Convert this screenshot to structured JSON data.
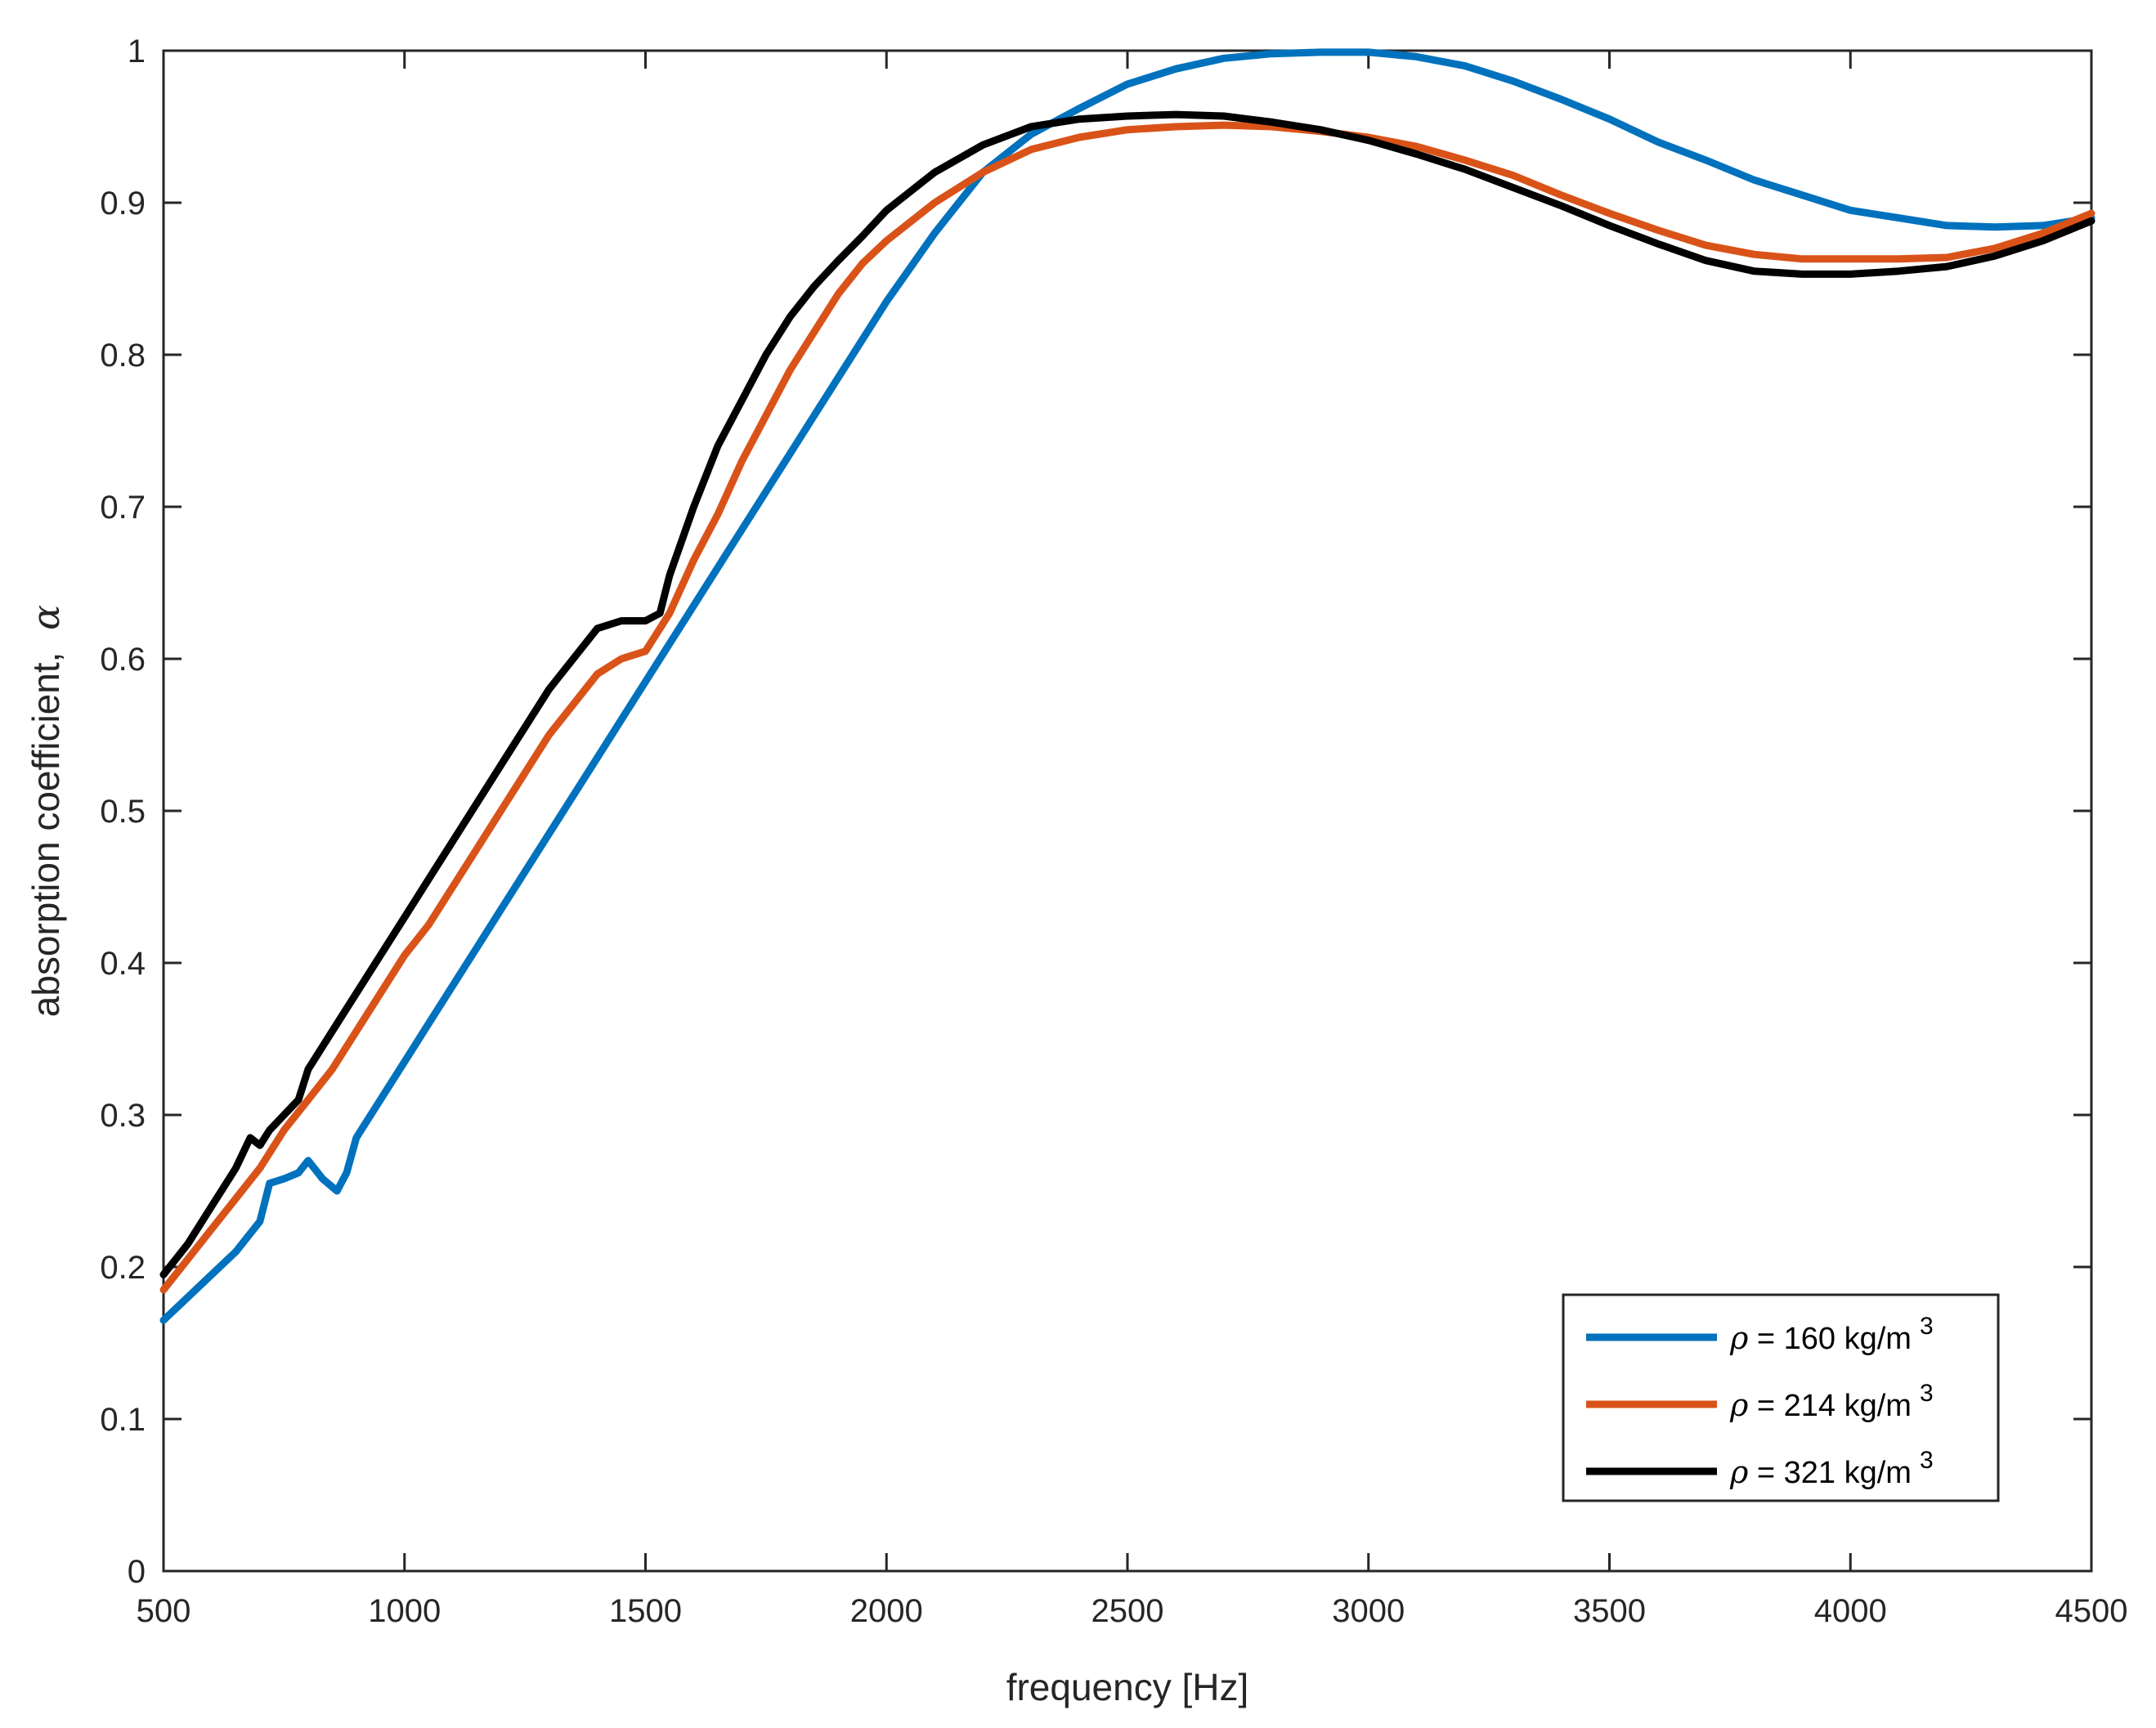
{
  "chart_data": {
    "type": "line",
    "title": "",
    "xlabel": "frequency [Hz]",
    "ylabel_text": "absorption coefficient,",
    "ylabel_symbol": "α",
    "xlim": [
      500,
      4500
    ],
    "ylim": [
      0,
      1
    ],
    "xticks": [
      500,
      1000,
      1500,
      2000,
      2500,
      3000,
      3500,
      4000,
      4500
    ],
    "yticks": [
      0,
      0.1,
      0.2,
      0.3,
      0.4,
      0.5,
      0.6,
      0.7,
      0.8,
      0.9,
      1
    ],
    "xtick_labels": [
      "500",
      "1000",
      "1500",
      "2000",
      "2500",
      "3000",
      "3500",
      "4000",
      "4500"
    ],
    "ytick_labels": [
      "0",
      "0.1",
      "0.2",
      "0.3",
      "0.4",
      "0.5",
      "0.6",
      "0.7",
      "0.8",
      "0.9",
      "1"
    ],
    "grid": false,
    "legend_position": "bottom-right",
    "series": [
      {
        "name": "ρ = 160 kg/m3",
        "legend_symbol": "ρ",
        "legend_text": " = 160 kg/m",
        "legend_sup": "3",
        "color": "#0072BD",
        "x": [
          500,
          550,
          600,
          650,
          700,
          720,
          750,
          780,
          800,
          830,
          860,
          880,
          900,
          950,
          1000,
          1050,
          1100,
          1150,
          1200,
          1250,
          1300,
          1350,
          1400,
          1450,
          1500,
          1550,
          1600,
          1650,
          1700,
          1750,
          1800,
          1850,
          1900,
          1950,
          2000,
          2100,
          2200,
          2300,
          2400,
          2500,
          2600,
          2700,
          2800,
          2900,
          3000,
          3100,
          3200,
          3300,
          3400,
          3500,
          3600,
          3700,
          3800,
          3900,
          4000,
          4100,
          4200,
          4300,
          4400,
          4500
        ],
        "y": [
          0.165,
          0.18,
          0.195,
          0.21,
          0.23,
          0.255,
          0.258,
          0.262,
          0.27,
          0.258,
          0.25,
          0.262,
          0.285,
          0.31,
          0.335,
          0.36,
          0.385,
          0.41,
          0.435,
          0.46,
          0.485,
          0.51,
          0.535,
          0.56,
          0.585,
          0.61,
          0.635,
          0.66,
          0.685,
          0.71,
          0.735,
          0.76,
          0.785,
          0.81,
          0.835,
          0.88,
          0.92,
          0.945,
          0.962,
          0.978,
          0.988,
          0.995,
          0.998,
          0.999,
          0.999,
          0.996,
          0.99,
          0.98,
          0.968,
          0.955,
          0.94,
          0.928,
          0.915,
          0.905,
          0.895,
          0.89,
          0.885,
          0.884,
          0.885,
          0.89
        ]
      },
      {
        "name": "ρ = 214 kg/m3",
        "legend_symbol": "ρ",
        "legend_text": " = 214 kg/m",
        "legend_sup": "3",
        "color": "#D95319",
        "x": [
          500,
          550,
          600,
          650,
          700,
          750,
          800,
          850,
          900,
          950,
          1000,
          1050,
          1100,
          1150,
          1200,
          1250,
          1300,
          1350,
          1400,
          1450,
          1500,
          1550,
          1600,
          1650,
          1700,
          1750,
          1800,
          1850,
          1900,
          1950,
          2000,
          2100,
          2200,
          2300,
          2400,
          2500,
          2600,
          2700,
          2800,
          2900,
          3000,
          3100,
          3200,
          3300,
          3400,
          3500,
          3600,
          3700,
          3800,
          3900,
          4000,
          4100,
          4200,
          4300,
          4400,
          4500
        ],
        "y": [
          0.185,
          0.205,
          0.225,
          0.245,
          0.265,
          0.29,
          0.31,
          0.33,
          0.355,
          0.38,
          0.405,
          0.425,
          0.45,
          0.475,
          0.5,
          0.525,
          0.55,
          0.57,
          0.59,
          0.6,
          0.605,
          0.63,
          0.665,
          0.695,
          0.73,
          0.76,
          0.79,
          0.815,
          0.84,
          0.86,
          0.875,
          0.9,
          0.92,
          0.935,
          0.943,
          0.948,
          0.95,
          0.951,
          0.95,
          0.947,
          0.943,
          0.937,
          0.928,
          0.918,
          0.905,
          0.893,
          0.882,
          0.872,
          0.866,
          0.863,
          0.863,
          0.863,
          0.864,
          0.87,
          0.88,
          0.893
        ]
      },
      {
        "name": "ρ = 321 kg/m3",
        "legend_symbol": "ρ",
        "legend_text": " = 321 kg/m",
        "legend_sup": "3",
        "color": "#000000",
        "x": [
          500,
          550,
          600,
          650,
          680,
          700,
          720,
          750,
          780,
          800,
          850,
          900,
          950,
          1000,
          1050,
          1100,
          1150,
          1200,
          1250,
          1300,
          1350,
          1400,
          1450,
          1500,
          1530,
          1550,
          1600,
          1650,
          1700,
          1750,
          1800,
          1850,
          1900,
          1950,
          2000,
          2100,
          2200,
          2300,
          2400,
          2500,
          2600,
          2700,
          2800,
          2900,
          3000,
          3100,
          3200,
          3300,
          3400,
          3500,
          3600,
          3700,
          3800,
          3900,
          4000,
          4100,
          4200,
          4300,
          4400,
          4500
        ],
        "y": [
          0.195,
          0.215,
          0.24,
          0.265,
          0.285,
          0.28,
          0.29,
          0.3,
          0.31,
          0.33,
          0.355,
          0.38,
          0.405,
          0.43,
          0.455,
          0.48,
          0.505,
          0.53,
          0.555,
          0.58,
          0.6,
          0.62,
          0.625,
          0.625,
          0.63,
          0.655,
          0.7,
          0.74,
          0.77,
          0.8,
          0.825,
          0.845,
          0.862,
          0.878,
          0.895,
          0.92,
          0.938,
          0.95,
          0.955,
          0.957,
          0.958,
          0.957,
          0.953,
          0.948,
          0.941,
          0.932,
          0.922,
          0.91,
          0.898,
          0.885,
          0.873,
          0.862,
          0.855,
          0.853,
          0.853,
          0.855,
          0.858,
          0.865,
          0.875,
          0.888
        ]
      }
    ]
  }
}
